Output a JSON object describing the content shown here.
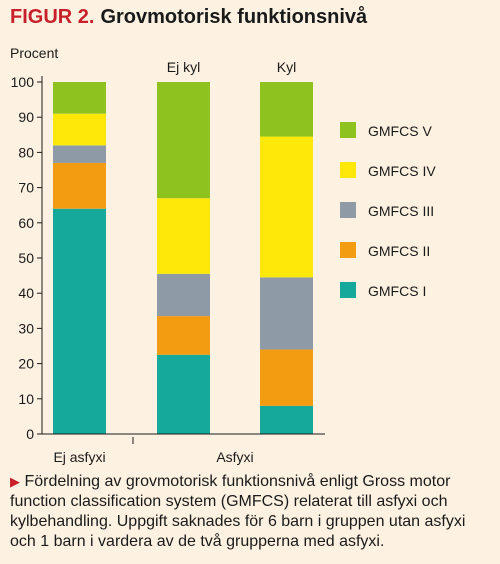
{
  "figure": {
    "label": "FIGUR 2.",
    "title": "Grovmotorisk funktionsnivå"
  },
  "caption": "Fördelning av grovmotorisk funktionsnivå enligt Gross motor function classification system (GMFCS) relaterat till asfyxi och kylbehandling. Uppgift saknades för 6 barn i gruppen utan asfyxi och 1 barn i vardera av de två grupperna med asfyxi.",
  "colors": {
    "background": "#fdf2e2",
    "accent": "#c8202a",
    "GMFCS I": "#14a99a",
    "GMFCS II": "#f39c12",
    "GMFCS III": "#8e9ba6",
    "GMFCS IV": "#fde80a",
    "GMFCS V": "#8dc21f"
  },
  "chart_data": {
    "type": "bar",
    "stacked": true,
    "ylabel": "Procent",
    "ylim": [
      0,
      100
    ],
    "yticks": [
      0,
      10,
      20,
      30,
      40,
      50,
      60,
      70,
      80,
      90,
      100
    ],
    "categories": [
      "Ej asfyxi",
      "Ej kyl",
      "Kyl"
    ],
    "group_labels": [
      {
        "label": "Ej asfyxi",
        "covers": [
          "Ej asfyxi"
        ]
      },
      {
        "label": "Asfyxi",
        "covers": [
          "Ej kyl",
          "Kyl"
        ]
      }
    ],
    "top_labels": [
      "",
      "Ej kyl",
      "Kyl"
    ],
    "series": [
      {
        "name": "GMFCS I",
        "values": [
          64,
          22.5,
          8
        ]
      },
      {
        "name": "GMFCS II",
        "values": [
          13,
          11,
          16
        ]
      },
      {
        "name": "GMFCS III",
        "values": [
          5,
          12,
          20.5
        ]
      },
      {
        "name": "GMFCS IV",
        "values": [
          9,
          21.5,
          40
        ]
      },
      {
        "name": "GMFCS V",
        "values": [
          9,
          33,
          15.5
        ]
      }
    ],
    "legend_order": [
      "GMFCS V",
      "GMFCS IV",
      "GMFCS III",
      "GMFCS II",
      "GMFCS I"
    ],
    "legend_position": "right",
    "grid": false
  }
}
